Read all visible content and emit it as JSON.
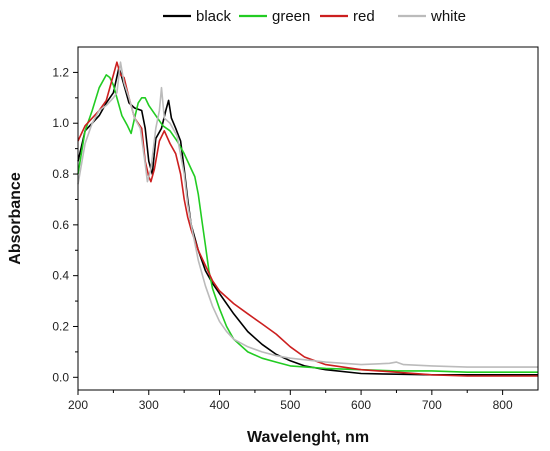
{
  "chart_data": {
    "type": "line",
    "title": "",
    "xlabel": "Wavelenght, nm",
    "ylabel": "Absorbance",
    "xlim": [
      200,
      850
    ],
    "ylim": [
      -0.05,
      1.3
    ],
    "x_ticks": [
      200,
      300,
      400,
      500,
      600,
      700,
      800
    ],
    "y_ticks": [
      0.0,
      0.2,
      0.4,
      0.6,
      0.8,
      1.0,
      1.2
    ],
    "x_tick_labels": [
      "200",
      "300",
      "400",
      "500",
      "600",
      "700",
      "800"
    ],
    "y_tick_labels": [
      "0.0",
      "0.2",
      "0.4",
      "0.6",
      "0.8",
      "1.0",
      "1.2"
    ],
    "grid": false,
    "legend": "top",
    "series": [
      {
        "name": "black",
        "color": "#000000",
        "points": [
          [
            200,
            0.85
          ],
          [
            210,
            0.97
          ],
          [
            220,
            1.0
          ],
          [
            230,
            1.03
          ],
          [
            240,
            1.08
          ],
          [
            250,
            1.12
          ],
          [
            258,
            1.22
          ],
          [
            265,
            1.15
          ],
          [
            272,
            1.08
          ],
          [
            280,
            1.06
          ],
          [
            290,
            1.05
          ],
          [
            295,
            0.98
          ],
          [
            300,
            0.85
          ],
          [
            305,
            0.8
          ],
          [
            310,
            0.94
          ],
          [
            318,
            0.98
          ],
          [
            324,
            1.05
          ],
          [
            328,
            1.09
          ],
          [
            332,
            1.02
          ],
          [
            338,
            0.98
          ],
          [
            345,
            0.93
          ],
          [
            350,
            0.82
          ],
          [
            355,
            0.7
          ],
          [
            360,
            0.6
          ],
          [
            370,
            0.5
          ],
          [
            380,
            0.42
          ],
          [
            390,
            0.37
          ],
          [
            400,
            0.33
          ],
          [
            420,
            0.25
          ],
          [
            440,
            0.18
          ],
          [
            460,
            0.13
          ],
          [
            480,
            0.09
          ],
          [
            500,
            0.065
          ],
          [
            520,
            0.045
          ],
          [
            550,
            0.03
          ],
          [
            600,
            0.015
          ],
          [
            650,
            0.012
          ],
          [
            700,
            0.01
          ],
          [
            750,
            0.01
          ],
          [
            800,
            0.01
          ],
          [
            850,
            0.01
          ]
        ]
      },
      {
        "name": "green",
        "color": "#22cc22",
        "points": [
          [
            200,
            0.8
          ],
          [
            210,
            0.97
          ],
          [
            220,
            1.05
          ],
          [
            230,
            1.14
          ],
          [
            240,
            1.19
          ],
          [
            245,
            1.18
          ],
          [
            250,
            1.15
          ],
          [
            255,
            1.1
          ],
          [
            262,
            1.03
          ],
          [
            270,
            0.99
          ],
          [
            275,
            0.96
          ],
          [
            280,
            1.02
          ],
          [
            285,
            1.08
          ],
          [
            290,
            1.1
          ],
          [
            295,
            1.1
          ],
          [
            300,
            1.07
          ],
          [
            310,
            1.03
          ],
          [
            320,
            0.99
          ],
          [
            330,
            0.97
          ],
          [
            340,
            0.93
          ],
          [
            350,
            0.88
          ],
          [
            360,
            0.82
          ],
          [
            365,
            0.79
          ],
          [
            370,
            0.72
          ],
          [
            375,
            0.62
          ],
          [
            380,
            0.52
          ],
          [
            385,
            0.42
          ],
          [
            390,
            0.35
          ],
          [
            400,
            0.27
          ],
          [
            410,
            0.2
          ],
          [
            420,
            0.15
          ],
          [
            440,
            0.1
          ],
          [
            460,
            0.075
          ],
          [
            480,
            0.06
          ],
          [
            500,
            0.045
          ],
          [
            550,
            0.035
          ],
          [
            600,
            0.03
          ],
          [
            650,
            0.025
          ],
          [
            700,
            0.025
          ],
          [
            750,
            0.02
          ],
          [
            800,
            0.02
          ],
          [
            850,
            0.02
          ]
        ]
      },
      {
        "name": "red",
        "color": "#cc1f1f",
        "points": [
          [
            200,
            0.93
          ],
          [
            210,
            0.99
          ],
          [
            220,
            1.02
          ],
          [
            230,
            1.05
          ],
          [
            240,
            1.09
          ],
          [
            250,
            1.19
          ],
          [
            255,
            1.24
          ],
          [
            260,
            1.19
          ],
          [
            265,
            1.18
          ],
          [
            272,
            1.1
          ],
          [
            280,
            1.02
          ],
          [
            290,
            0.98
          ],
          [
            295,
            0.85
          ],
          [
            300,
            0.79
          ],
          [
            303,
            0.77
          ],
          [
            308,
            0.82
          ],
          [
            315,
            0.93
          ],
          [
            322,
            0.97
          ],
          [
            330,
            0.92
          ],
          [
            338,
            0.88
          ],
          [
            345,
            0.8
          ],
          [
            350,
            0.7
          ],
          [
            355,
            0.63
          ],
          [
            360,
            0.58
          ],
          [
            370,
            0.5
          ],
          [
            380,
            0.44
          ],
          [
            390,
            0.38
          ],
          [
            400,
            0.34
          ],
          [
            420,
            0.29
          ],
          [
            440,
            0.25
          ],
          [
            460,
            0.21
          ],
          [
            480,
            0.17
          ],
          [
            500,
            0.12
          ],
          [
            520,
            0.08
          ],
          [
            550,
            0.05
          ],
          [
            600,
            0.03
          ],
          [
            650,
            0.02
          ],
          [
            700,
            0.01
          ],
          [
            750,
            0.005
          ],
          [
            800,
            0.005
          ],
          [
            850,
            0.005
          ]
        ]
      },
      {
        "name": "white",
        "color": "#bbbbbb",
        "points": [
          [
            200,
            0.76
          ],
          [
            210,
            0.92
          ],
          [
            220,
            1.0
          ],
          [
            230,
            1.05
          ],
          [
            240,
            1.07
          ],
          [
            250,
            1.1
          ],
          [
            255,
            1.12
          ],
          [
            260,
            1.24
          ],
          [
            265,
            1.16
          ],
          [
            272,
            1.1
          ],
          [
            280,
            1.02
          ],
          [
            288,
            0.98
          ],
          [
            295,
            0.84
          ],
          [
            298,
            0.77
          ],
          [
            303,
            0.82
          ],
          [
            310,
            0.98
          ],
          [
            315,
            1.05
          ],
          [
            318,
            1.14
          ],
          [
            322,
            1.02
          ],
          [
            330,
            1.0
          ],
          [
            340,
            0.95
          ],
          [
            350,
            0.8
          ],
          [
            355,
            0.68
          ],
          [
            360,
            0.6
          ],
          [
            370,
            0.46
          ],
          [
            380,
            0.36
          ],
          [
            390,
            0.28
          ],
          [
            400,
            0.22
          ],
          [
            410,
            0.18
          ],
          [
            420,
            0.15
          ],
          [
            440,
            0.12
          ],
          [
            460,
            0.1
          ],
          [
            480,
            0.085
          ],
          [
            500,
            0.075
          ],
          [
            550,
            0.06
          ],
          [
            600,
            0.05
          ],
          [
            640,
            0.055
          ],
          [
            650,
            0.06
          ],
          [
            660,
            0.05
          ],
          [
            700,
            0.045
          ],
          [
            750,
            0.04
          ],
          [
            800,
            0.04
          ],
          [
            850,
            0.04
          ]
        ]
      }
    ]
  }
}
